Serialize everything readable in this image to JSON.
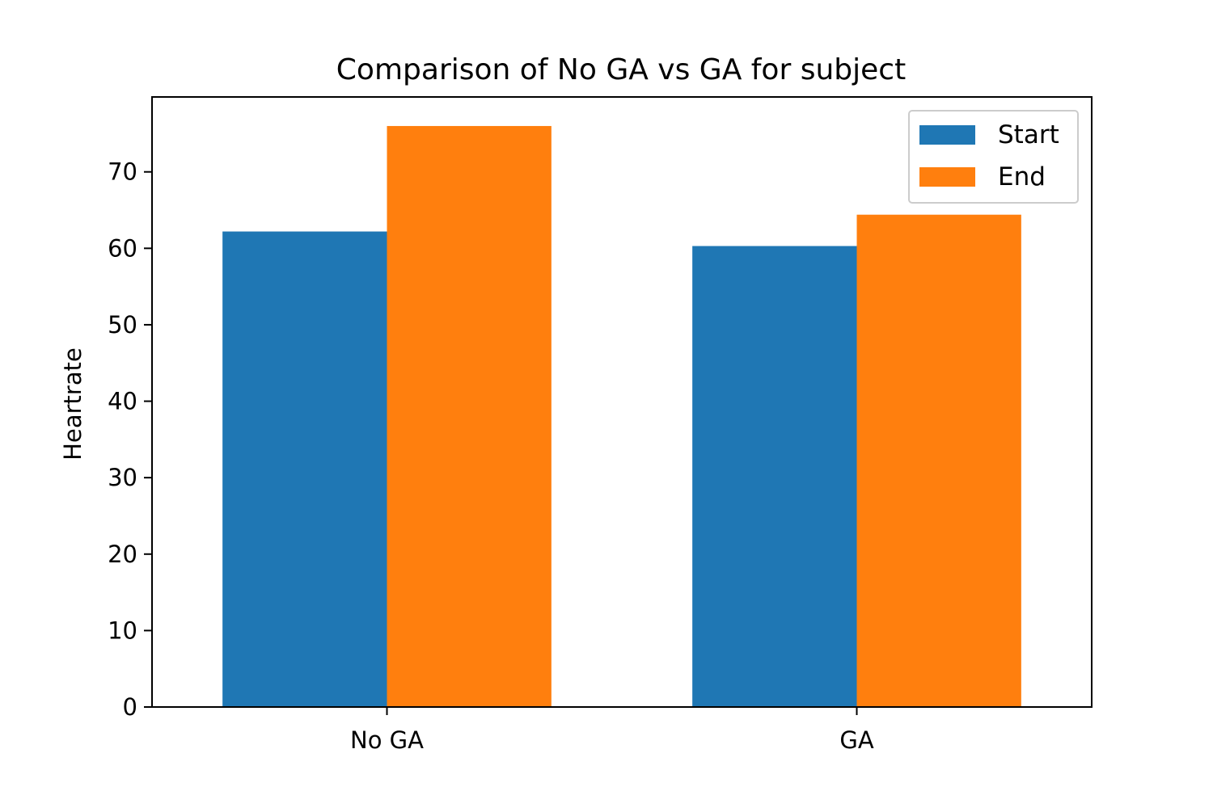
{
  "chart_data": {
    "type": "bar",
    "title": "Comparison of No GA vs GA for subject",
    "xlabel": "",
    "ylabel": "Heartrate",
    "categories": [
      "No GA",
      "GA"
    ],
    "series": [
      {
        "name": "Start",
        "values": [
          62.2,
          60.3
        ],
        "color": "#1f77b4"
      },
      {
        "name": "End",
        "values": [
          76.0,
          64.4
        ],
        "color": "#ff7f0e"
      }
    ],
    "ylim": [
      0,
      79.8
    ],
    "yticks": [
      0,
      10,
      20,
      30,
      40,
      50,
      60,
      70
    ],
    "grid": false,
    "legend_position": "top-right"
  }
}
